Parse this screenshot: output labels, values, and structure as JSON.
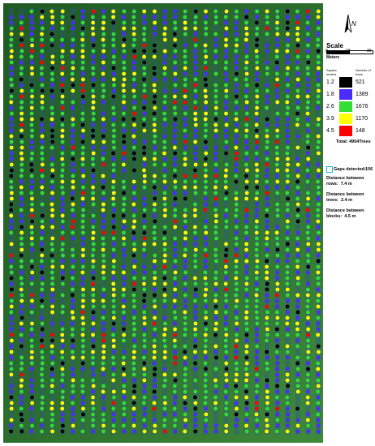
{
  "north_label": "N",
  "scale": {
    "title": "Scale",
    "ticks": [
      "0",
      "18",
      "36"
    ],
    "unit": "Meters"
  },
  "legend": {
    "header_area": "Square meters",
    "header_count": "Number of trees",
    "rows": [
      {
        "area": "1.2",
        "count": "521",
        "color": "#000000"
      },
      {
        "area": "1.8",
        "count": "1389",
        "color": "#4b2cff"
      },
      {
        "area": "2.6",
        "count": "1676",
        "color": "#33dd33"
      },
      {
        "area": "3.9",
        "count": "1170",
        "color": "#ffff00"
      },
      {
        "area": "4.5",
        "count": "148",
        "color": "#ff0000"
      }
    ],
    "total": "Total:  4904Trees"
  },
  "gaps": {
    "label": "Gaps detected:",
    "value": "106"
  },
  "distances": [
    {
      "label": "Distance between rows:",
      "value": "7.4 m"
    },
    {
      "label": "Distance between trees:",
      "value": "2.4 m"
    },
    {
      "label": "Distance between blocks:",
      "value": "4.5 m"
    }
  ]
}
